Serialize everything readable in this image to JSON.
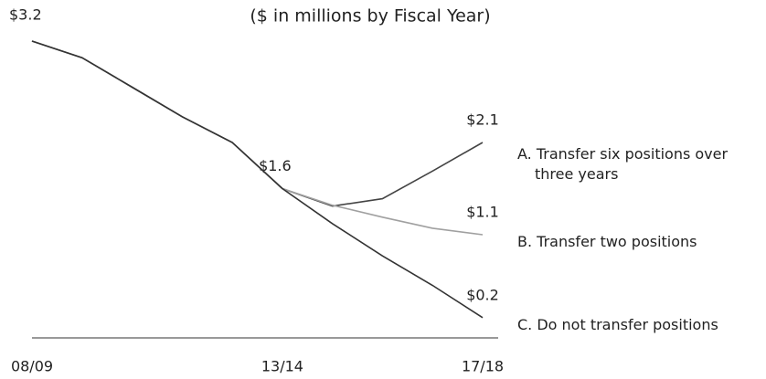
{
  "chart_data": {
    "type": "line",
    "title": "($ in millions by Fiscal Year)",
    "categories": [
      "08/09",
      null,
      null,
      null,
      null,
      "13/14",
      null,
      null,
      null,
      "17/18"
    ],
    "ylim": [
      0,
      3.2
    ],
    "series": [
      {
        "name": "A. Transfer six positions over three years",
        "color": "#444444",
        "values": [
          3.2,
          3.02,
          2.7,
          2.38,
          2.1,
          1.6,
          1.41,
          1.49,
          1.79,
          2.1
        ],
        "value_labels": [
          "$3.2",
          null,
          null,
          null,
          null,
          "$1.6",
          null,
          null,
          null,
          "$2.1"
        ]
      },
      {
        "name": "B. Transfer two positions",
        "color": "#a0a0a0",
        "values": [
          3.2,
          3.02,
          2.7,
          2.38,
          2.1,
          1.6,
          1.42,
          1.29,
          1.17,
          1.1
        ],
        "value_labels": [
          null,
          null,
          null,
          null,
          null,
          null,
          null,
          null,
          null,
          "$1.1"
        ]
      },
      {
        "name": "C. Do not transfer positions",
        "color": "#333333",
        "values": [
          3.2,
          3.02,
          2.7,
          2.38,
          2.1,
          1.6,
          1.22,
          0.87,
          0.55,
          0.2
        ],
        "value_labels": [
          null,
          null,
          null,
          null,
          null,
          null,
          null,
          null,
          null,
          "$0.2"
        ]
      }
    ]
  }
}
